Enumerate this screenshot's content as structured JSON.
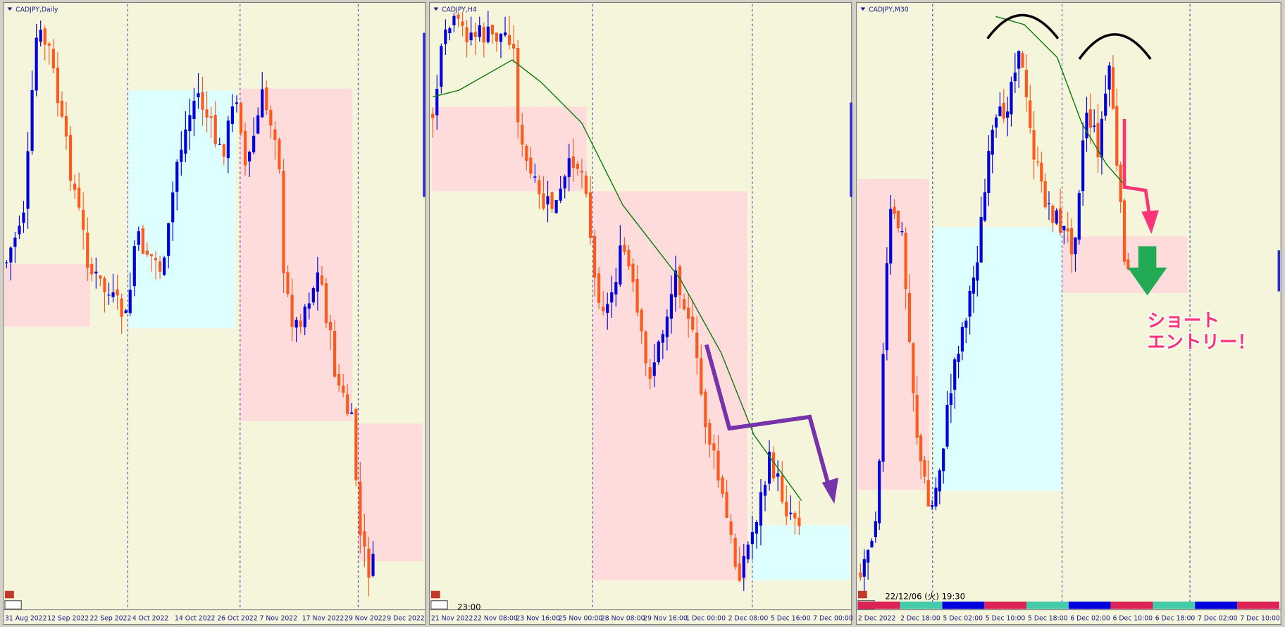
{
  "panels": [
    {
      "title": "CADJPY,Daily",
      "x_labels": [
        "31 Aug 2022",
        "12 Sep 2022",
        "22 Sep 2022",
        "4 Oct 2022",
        "14 Oct 2022",
        "26 Oct 2022",
        "7 Nov 2022",
        "17 Nov 2022",
        "29 Nov 2022",
        "9 Dec 2022"
      ]
    },
    {
      "title": "CADJPY,H4",
      "x_labels": [
        "21 Nov 2022",
        "22 Nov 08:00",
        "23 Nov 16:00",
        "25 Nov 00:00",
        "28 Nov 08:00",
        "29 Nov 16:00",
        "1 Dec 00:00",
        "2 Dec 08:00",
        "5 Dec 16:00",
        "7 Dec 00:00"
      ],
      "clock": "23:00"
    },
    {
      "title": "CADJPY,M30",
      "x_labels": [
        "2 Dec 2022",
        "2 Dec 18:00",
        "5 Dec 02:00",
        "5 Dec 10:00",
        "5 Dec 18:00",
        "6 Dec 02:00",
        "6 Dec 10:00",
        "6 Dec 18:00",
        "7 Dec 02:00",
        "7 Dec 10:00"
      ],
      "timestamp": "22/12/06 (火) 19:30",
      "annotation": [
        "ショート",
        "エントリー！"
      ]
    }
  ]
}
